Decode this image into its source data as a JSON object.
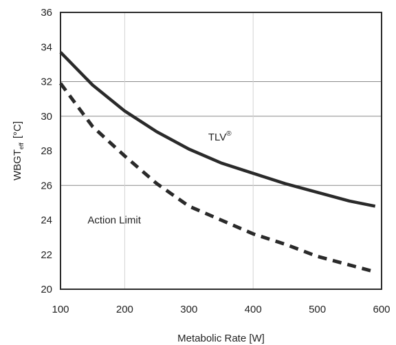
{
  "chart_data": {
    "type": "line",
    "xlabel": "Metabolic Rate [W]",
    "ylabel": {
      "main": "WBGT",
      "sub": "eff",
      "unit": "[°C]"
    },
    "xlim": [
      100,
      600
    ],
    "ylim": [
      20,
      36
    ],
    "xticks": [
      100,
      200,
      300,
      400,
      500,
      600
    ],
    "yticks": [
      20,
      22,
      24,
      26,
      28,
      30,
      32,
      34,
      36
    ],
    "grid": {
      "horizontal": [
        26,
        30,
        32
      ],
      "vertical": [
        200,
        400
      ]
    },
    "series": [
      {
        "name": "TLV",
        "name_superscript": "®",
        "style": "solid",
        "color": "#2a2a2a",
        "x": [
          100,
          150,
          200,
          250,
          300,
          350,
          400,
          450,
          500,
          550,
          590
        ],
        "y": [
          33.7,
          31.8,
          30.3,
          29.1,
          28.1,
          27.3,
          26.7,
          26.1,
          25.6,
          25.1,
          24.8
        ]
      },
      {
        "name": "Action Limit",
        "style": "dashed",
        "color": "#2a2a2a",
        "x": [
          100,
          150,
          200,
          250,
          300,
          350,
          400,
          450,
          500,
          550,
          590
        ],
        "y": [
          31.9,
          29.4,
          27.7,
          26.1,
          24.8,
          24.0,
          23.2,
          22.6,
          21.9,
          21.4,
          21.0
        ]
      }
    ],
    "annotations": [
      {
        "text": "TLV",
        "superscript": "®",
        "x": 330,
        "y": 28.8
      },
      {
        "text": "Action Limit",
        "x": 110,
        "y": 24.0
      }
    ]
  }
}
